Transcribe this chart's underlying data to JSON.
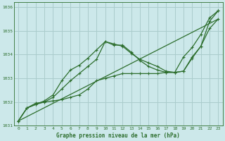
{
  "bg_color": "#cce8ea",
  "grid_color": "#aacccc",
  "line_color": "#2d6e2d",
  "xlabel": "Graphe pression niveau de la mer (hPa)",
  "xlim": [
    -0.5,
    23.5
  ],
  "ylim": [
    1031.0,
    1036.2
  ],
  "yticks": [
    1031,
    1032,
    1033,
    1034,
    1035,
    1036
  ],
  "xticks": [
    0,
    1,
    2,
    3,
    4,
    5,
    6,
    7,
    8,
    9,
    10,
    11,
    12,
    13,
    14,
    15,
    16,
    17,
    18,
    19,
    20,
    21,
    22,
    23
  ],
  "series": [
    {
      "x": [
        0,
        23
      ],
      "y": [
        1031.2,
        1035.5
      ],
      "marker": false,
      "lw": 0.9
    },
    {
      "x": [
        0,
        1,
        2,
        3,
        4,
        5,
        6,
        7,
        8,
        9,
        10,
        11,
        12,
        13,
        14,
        15,
        16,
        17,
        18,
        19,
        20,
        21,
        22,
        23
      ],
      "y": [
        1031.2,
        1031.75,
        1031.95,
        1032.0,
        1032.05,
        1032.1,
        1032.2,
        1032.3,
        1032.55,
        1032.9,
        1033.0,
        1033.1,
        1033.2,
        1033.2,
        1033.2,
        1033.2,
        1033.2,
        1033.25,
        1033.25,
        1033.3,
        1033.9,
        1034.35,
        1035.1,
        1035.5
      ],
      "marker": true,
      "lw": 0.9
    },
    {
      "x": [
        0,
        1,
        2,
        3,
        4,
        5,
        6,
        7,
        8,
        9,
        10,
        11,
        12,
        13,
        14,
        15,
        16,
        17,
        18,
        19,
        20,
        21,
        22,
        23
      ],
      "y": [
        1031.2,
        1031.75,
        1031.9,
        1032.0,
        1032.2,
        1032.55,
        1032.9,
        1033.2,
        1033.5,
        1033.8,
        1034.55,
        1034.45,
        1034.35,
        1034.05,
        1033.8,
        1033.65,
        1033.5,
        1033.3,
        1033.25,
        1033.9,
        1034.3,
        1034.85,
        1035.55,
        1035.85
      ],
      "marker": true,
      "lw": 0.9
    },
    {
      "x": [
        0,
        1,
        2,
        3,
        4,
        5,
        6,
        7,
        8,
        9,
        10,
        11,
        12,
        13,
        14,
        15,
        16,
        17,
        18,
        19,
        20,
        21,
        22,
        23
      ],
      "y": [
        1031.2,
        1031.75,
        1031.9,
        1032.05,
        1032.3,
        1032.9,
        1033.35,
        1033.55,
        1033.85,
        1034.2,
        1034.55,
        1034.4,
        1034.4,
        1034.1,
        1033.75,
        1033.5,
        1033.35,
        1033.25,
        1033.25,
        1033.3,
        1033.85,
        1034.35,
        1035.4,
        1035.85
      ],
      "marker": true,
      "lw": 0.9
    }
  ]
}
